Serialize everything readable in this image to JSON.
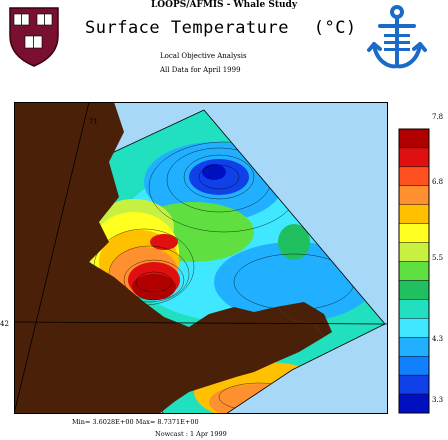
{
  "header": {
    "project": "LOOPS/AFMIS - Whale Study",
    "title": "Surface Temperature",
    "unit": "(°C)",
    "subtitle_line1": "Local Objective Analysis",
    "subtitle_line2": "All Data for April 1999"
  },
  "axes": {
    "longitude_label": "71",
    "latitude_label": "42"
  },
  "colorbar": {
    "tick_labels": [
      "7.8",
      "6.8",
      "5.5",
      "4.3",
      "3.3"
    ],
    "colors": [
      "#b00000",
      "#e01010",
      "#ff5020",
      "#ff9030",
      "#ffc000",
      "#ffff20",
      "#c8f040",
      "#60e040",
      "#20c060",
      "#20e0c0",
      "#40e8ff",
      "#20b0ff",
      "#1080ff",
      "#1040e8",
      "#0010c0"
    ]
  },
  "footer": {
    "minmax": "Min= 3.6028E+00  Max= 8.7371E+00",
    "nowcast": "Nowcast :  1 Apr 1999"
  },
  "colors": {
    "land": "#4a2008",
    "outside_ocean": "#a8d8f8",
    "logo_maroon": "#7a1030",
    "logo_blue": "#1a6bc8"
  }
}
